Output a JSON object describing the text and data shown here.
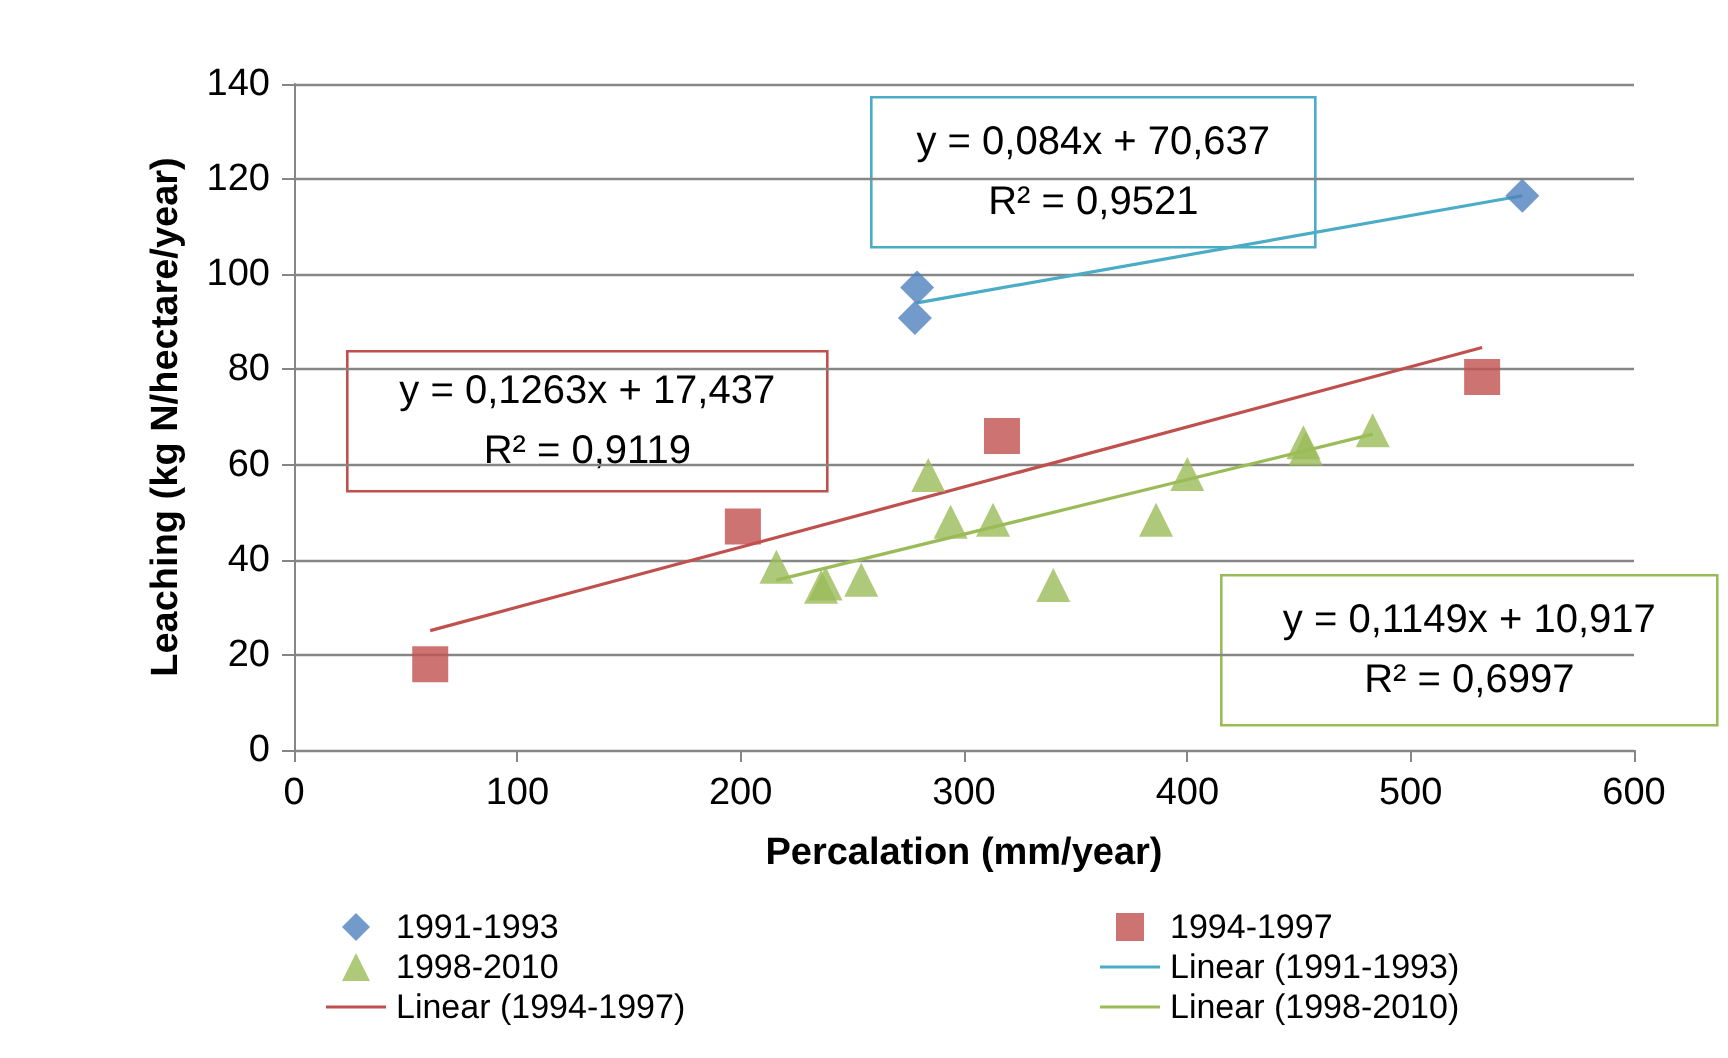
{
  "chart_data": {
    "type": "scatter",
    "xlabel": "Percalation (mm/year)",
    "ylabel": "Leaching (kg N/hectare/year)",
    "xlim": [
      0,
      600
    ],
    "xticks": [
      0,
      100,
      200,
      300,
      400,
      500,
      600
    ],
    "ylim": [
      0,
      140
    ],
    "yticks": [
      0,
      20,
      40,
      60,
      80,
      100,
      120,
      140
    ],
    "grid": "y",
    "legend": "bottom",
    "series": [
      {
        "name": "1991-1993",
        "color": "#4f81bd",
        "marker": "diamond",
        "x": [
          279,
          278,
          550
        ],
        "values": [
          97.2,
          90.8,
          116.5
        ]
      },
      {
        "name": "1994-1997",
        "color": "#c0504d",
        "marker": "square",
        "x": [
          61,
          201,
          317,
          532
        ],
        "values": [
          18,
          47,
          66,
          78.4
        ]
      },
      {
        "name": "1998-2010",
        "color": "#9bbb59",
        "marker": "triangle",
        "x": [
          216,
          236,
          238,
          254,
          284,
          294,
          313,
          340,
          386,
          400,
          452,
          453,
          483
        ],
        "values": [
          38.5,
          34.3,
          35,
          35.8,
          57.8,
          48,
          48.4,
          34.7,
          48.4,
          58,
          64.7,
          63.4,
          67.2
        ]
      },
      {
        "name": "Linear (1991-1993)",
        "type": "line",
        "color": "#4bacc6",
        "marker": "none",
        "x": [
          279,
          550
        ],
        "values": [
          94,
          116.5
        ]
      },
      {
        "name": "Linear (1994-1997)",
        "type": "line",
        "color": "#c0504d",
        "marker": "none",
        "x": [
          61,
          532
        ],
        "values": [
          25.1,
          84.6
        ]
      },
      {
        "name": "Linear (1998-2010)",
        "type": "line",
        "color": "#9bbb59",
        "marker": "none",
        "x": [
          216,
          483
        ],
        "values": [
          35.7,
          66.4
        ]
      }
    ],
    "annotations": [
      "y = 0,084x + 70,637\nR² = 0,9521",
      "y = 0,1263x + 17,437\nR² = 0,9119",
      "y = 0,1149x + 10,917\nR² = 0,6997"
    ]
  }
}
